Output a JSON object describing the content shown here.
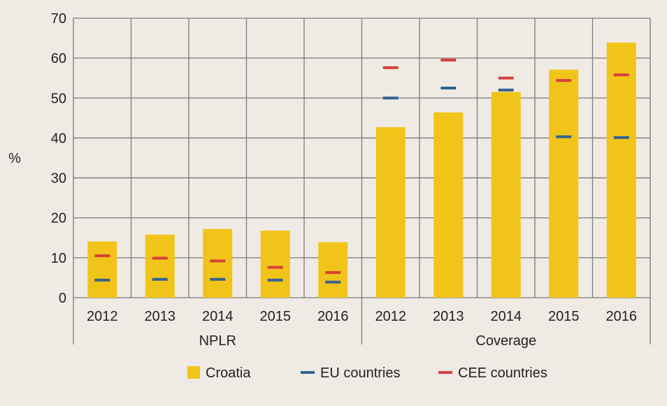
{
  "chart_data": {
    "type": "bar",
    "ylabel": "%",
    "ylim": [
      0,
      70
    ],
    "yticks": [
      0,
      10,
      20,
      30,
      40,
      50,
      60,
      70
    ],
    "grid": true,
    "groups": [
      {
        "name": "NPLR",
        "categories": [
          "2012",
          "2013",
          "2014",
          "2015",
          "2016"
        ]
      },
      {
        "name": "Coverage",
        "categories": [
          "2012",
          "2013",
          "2014",
          "2015",
          "2016"
        ]
      }
    ],
    "series": [
      {
        "name": "Croatia",
        "kind": "bar",
        "color": "#f1c419",
        "values": [
          14.1,
          15.8,
          17.2,
          16.8,
          13.9,
          42.7,
          46.4,
          51.5,
          57.1,
          63.9
        ]
      },
      {
        "name": "EU countries",
        "kind": "marker",
        "color": "#35628f",
        "values": [
          4.4,
          4.6,
          4.6,
          4.4,
          3.9,
          50.0,
          52.5,
          52.0,
          40.3,
          40.1
        ]
      },
      {
        "name": "CEE countries",
        "kind": "marker",
        "color": "#d9413a",
        "values": [
          10.5,
          9.9,
          9.2,
          7.6,
          6.3,
          57.6,
          59.5,
          55.0,
          54.4,
          55.8
        ]
      }
    ],
    "legend_position": "bottom"
  }
}
